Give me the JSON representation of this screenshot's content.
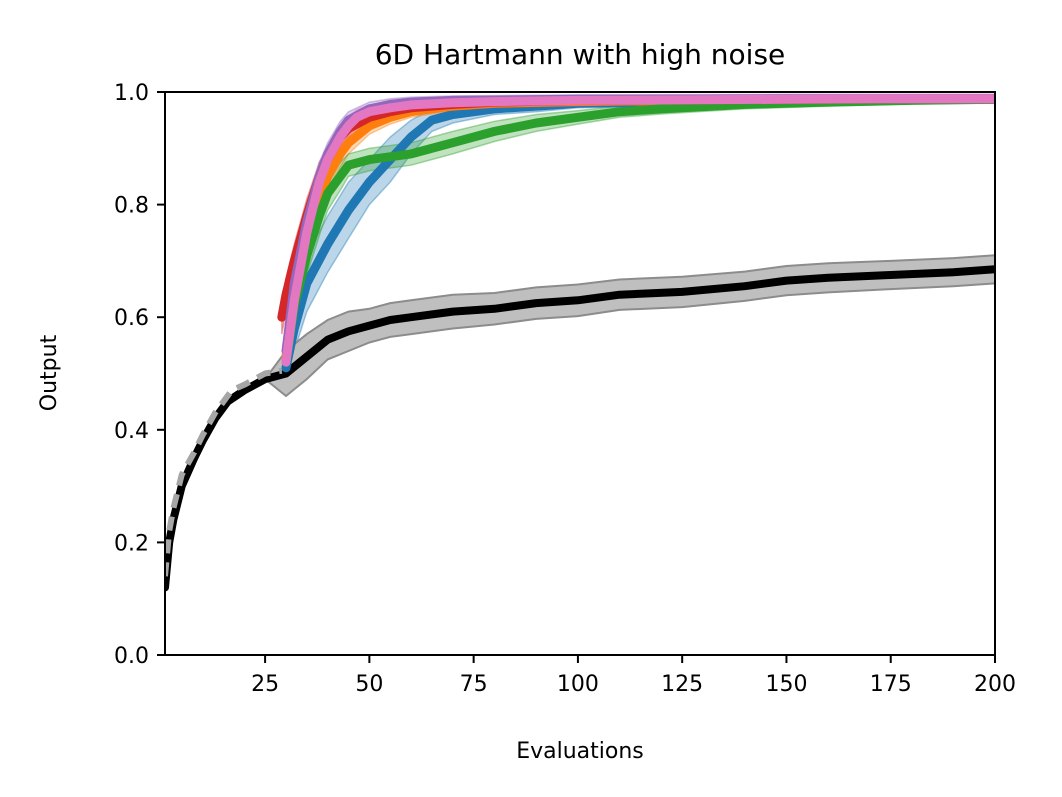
{
  "chart_data": {
    "type": "line",
    "title": "6D Hartmann with high noise",
    "xlabel": "Evaluations",
    "ylabel": "Output",
    "xlim": [
      1,
      200
    ],
    "ylim": [
      0.0,
      1.0
    ],
    "x_ticks": [
      25,
      50,
      75,
      100,
      125,
      150,
      175,
      200
    ],
    "x_tick_labels": [
      "25",
      "50",
      "75",
      "100",
      "125",
      "150",
      "175",
      "200"
    ],
    "y_ticks": [
      0.0,
      0.2,
      0.4,
      0.6,
      0.8,
      1.0
    ],
    "y_tick_labels": [
      "0.0",
      "0.2",
      "0.4",
      "0.6",
      "0.8",
      "1.0"
    ],
    "grid": false,
    "series": [
      {
        "name": "black",
        "color": "#000000",
        "band_color": "#bfbfbf",
        "band_edge_color": "#8c8c8c",
        "dash": false,
        "x": [
          1,
          2,
          3,
          5,
          8,
          10,
          13,
          16,
          20,
          25,
          30,
          35,
          40,
          45,
          50,
          55,
          60,
          70,
          80,
          90,
          100,
          110,
          125,
          140,
          150,
          160,
          175,
          190,
          200
        ],
        "y": [
          0.12,
          0.2,
          0.24,
          0.3,
          0.35,
          0.38,
          0.42,
          0.45,
          0.47,
          0.49,
          0.5,
          0.53,
          0.56,
          0.575,
          0.585,
          0.595,
          0.6,
          0.61,
          0.615,
          0.625,
          0.63,
          0.64,
          0.645,
          0.655,
          0.665,
          0.67,
          0.675,
          0.68,
          0.685
        ],
        "band": [
          0.0,
          0.0,
          0.0,
          0.0,
          0.0,
          0.0,
          0.0,
          0.0,
          0.0,
          0.0,
          0.04,
          0.04,
          0.035,
          0.035,
          0.03,
          0.03,
          0.03,
          0.03,
          0.028,
          0.028,
          0.028,
          0.027,
          0.027,
          0.026,
          0.026,
          0.026,
          0.025,
          0.025,
          0.025
        ]
      },
      {
        "name": "gray-dashed",
        "color": "#a6a6a6",
        "dash": true,
        "x": [
          1,
          2,
          3,
          5,
          8,
          10,
          13,
          17,
          20,
          25,
          29
        ],
        "y": [
          0.14,
          0.22,
          0.26,
          0.32,
          0.36,
          0.39,
          0.43,
          0.47,
          0.48,
          0.5,
          0.505
        ],
        "band": []
      },
      {
        "name": "blue",
        "color": "#1f77b4",
        "dash": false,
        "x": [
          30,
          32,
          35,
          40,
          45,
          50,
          55,
          60,
          65,
          70,
          80,
          90,
          100,
          125,
          150,
          175,
          200
        ],
        "y": [
          0.51,
          0.58,
          0.66,
          0.73,
          0.79,
          0.84,
          0.88,
          0.92,
          0.95,
          0.96,
          0.97,
          0.975,
          0.98,
          0.983,
          0.985,
          0.986,
          0.987
        ],
        "band": [
          0.03,
          0.04,
          0.05,
          0.05,
          0.05,
          0.04,
          0.04,
          0.03,
          0.02,
          0.015,
          0.01,
          0.01,
          0.008,
          0.007,
          0.007,
          0.007,
          0.007
        ]
      },
      {
        "name": "orange",
        "color": "#ff7f0e",
        "dash": false,
        "x": [
          30,
          32,
          35,
          38,
          40,
          43,
          45,
          50,
          55,
          60,
          70,
          80,
          100,
          125,
          150,
          200
        ],
        "y": [
          0.53,
          0.64,
          0.74,
          0.81,
          0.85,
          0.89,
          0.91,
          0.94,
          0.955,
          0.965,
          0.975,
          0.98,
          0.983,
          0.985,
          0.986,
          0.987
        ],
        "band": [
          0.03,
          0.03,
          0.03,
          0.03,
          0.03,
          0.025,
          0.02,
          0.015,
          0.012,
          0.01,
          0.008,
          0.008,
          0.007,
          0.007,
          0.006,
          0.006
        ]
      },
      {
        "name": "green",
        "color": "#2ca02c",
        "dash": false,
        "x": [
          30,
          32,
          35,
          38,
          40,
          43,
          45,
          50,
          60,
          70,
          80,
          90,
          100,
          110,
          120,
          140,
          160,
          180,
          200
        ],
        "y": [
          0.52,
          0.62,
          0.71,
          0.78,
          0.82,
          0.85,
          0.87,
          0.88,
          0.89,
          0.91,
          0.93,
          0.945,
          0.955,
          0.965,
          0.97,
          0.978,
          0.982,
          0.985,
          0.987
        ],
        "band": [
          0.03,
          0.03,
          0.035,
          0.035,
          0.03,
          0.025,
          0.02,
          0.02,
          0.02,
          0.02,
          0.018,
          0.015,
          0.012,
          0.01,
          0.009,
          0.008,
          0.007,
          0.006,
          0.006
        ]
      },
      {
        "name": "red",
        "color": "#d62728",
        "dash": false,
        "x": [
          29,
          30,
          32,
          35,
          38,
          40,
          43,
          45,
          50,
          55,
          60,
          70,
          80,
          100,
          125,
          150,
          200
        ],
        "y": [
          0.6,
          0.64,
          0.7,
          0.78,
          0.85,
          0.88,
          0.92,
          0.935,
          0.955,
          0.965,
          0.972,
          0.978,
          0.982,
          0.985,
          0.986,
          0.987,
          0.988
        ],
        "band": [
          0.03,
          0.03,
          0.03,
          0.03,
          0.025,
          0.02,
          0.02,
          0.015,
          0.012,
          0.01,
          0.009,
          0.008,
          0.007,
          0.006,
          0.006,
          0.006,
          0.006
        ]
      },
      {
        "name": "purple",
        "color": "#9467bd",
        "dash": false,
        "x": [
          30,
          32,
          35,
          38,
          40,
          43,
          45,
          50,
          55,
          60,
          70,
          100,
          150,
          200
        ],
        "y": [
          0.54,
          0.66,
          0.77,
          0.85,
          0.89,
          0.93,
          0.95,
          0.97,
          0.978,
          0.982,
          0.985,
          0.987,
          0.988,
          0.988
        ],
        "band": [
          0.03,
          0.03,
          0.03,
          0.025,
          0.02,
          0.018,
          0.015,
          0.012,
          0.01,
          0.009,
          0.008,
          0.008,
          0.008,
          0.008
        ]
      },
      {
        "name": "pink",
        "color": "#e377c2",
        "dash": false,
        "x": [
          30,
          32,
          35,
          38,
          40,
          43,
          45,
          47,
          50,
          55,
          60,
          70,
          80,
          100,
          125,
          150,
          175,
          200
        ],
        "y": [
          0.52,
          0.63,
          0.75,
          0.84,
          0.88,
          0.92,
          0.94,
          0.955,
          0.965,
          0.972,
          0.977,
          0.981,
          0.983,
          0.985,
          0.986,
          0.987,
          0.988,
          0.988
        ],
        "band": [
          0.03,
          0.03,
          0.03,
          0.025,
          0.02,
          0.018,
          0.016,
          0.014,
          0.012,
          0.01,
          0.009,
          0.008,
          0.008,
          0.008,
          0.008,
          0.008,
          0.008,
          0.008
        ]
      }
    ]
  }
}
